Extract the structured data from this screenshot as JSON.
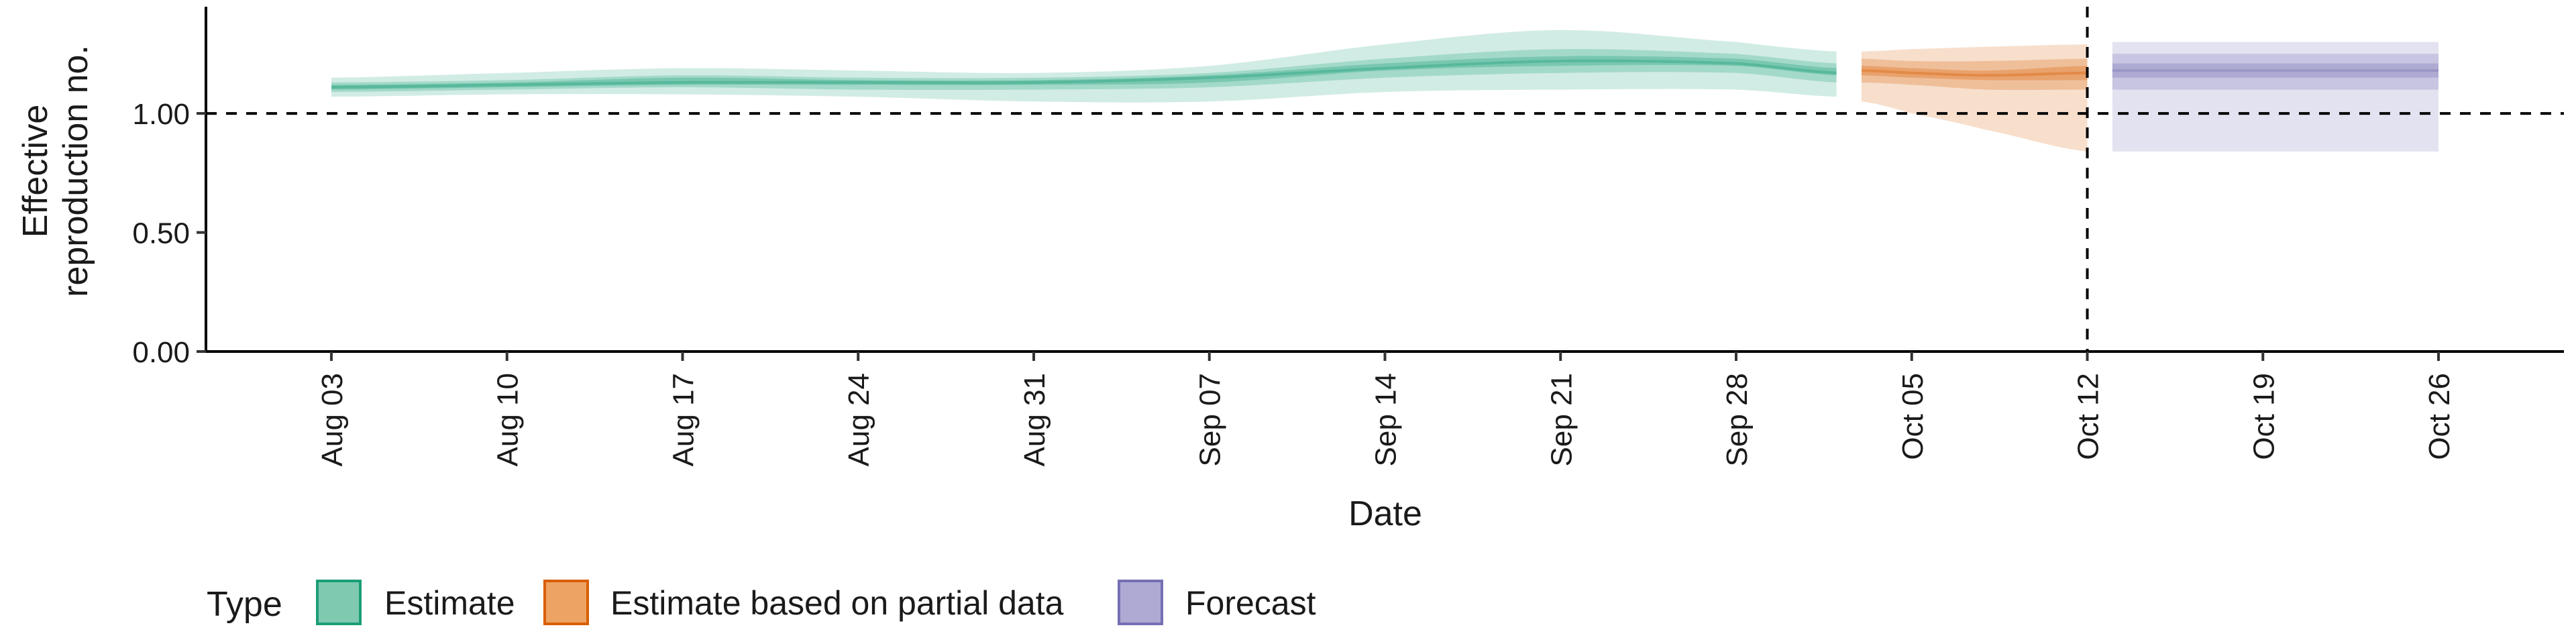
{
  "chart_data": {
    "type": "area",
    "xlabel": "Date",
    "ylabel": [
      "Effective",
      "reproduction no."
    ],
    "ylim": [
      0,
      1.42
    ],
    "yticks": [
      0.0,
      0.5,
      1.0
    ],
    "ytick_labels": [
      "0.00",
      "0.50",
      "1.00"
    ],
    "xlim": [
      "2020-07-29",
      "2020-10-31"
    ],
    "xticks": [
      "2020-08-03",
      "2020-08-10",
      "2020-08-17",
      "2020-08-24",
      "2020-08-31",
      "2020-09-07",
      "2020-09-14",
      "2020-09-21",
      "2020-09-28",
      "2020-10-05",
      "2020-10-12",
      "2020-10-19",
      "2020-10-26"
    ],
    "xtick_labels": [
      "Aug 03",
      "Aug 10",
      "Aug 17",
      "Aug 24",
      "Aug 31",
      "Sep 07",
      "Sep 14",
      "Sep 21",
      "Sep 28",
      "Oct 05",
      "Oct 12",
      "Oct 19",
      "Oct 26"
    ],
    "reference_line_y": 1.0,
    "reference_line_x": "2020-10-12",
    "grid": false,
    "legend_position": "bottom-left",
    "legend_title": "Type",
    "series": [
      {
        "name": "Estimate",
        "color": "#1b9e77",
        "points": [
          {
            "x": "2020-08-03",
            "median": 1.11,
            "lo20": 1.1,
            "hi20": 1.12,
            "lo50": 1.09,
            "hi50": 1.13,
            "lo90": 1.07,
            "hi90": 1.15
          },
          {
            "x": "2020-08-10",
            "median": 1.12,
            "lo20": 1.11,
            "hi20": 1.13,
            "lo50": 1.1,
            "hi50": 1.14,
            "lo90": 1.08,
            "hi90": 1.17
          },
          {
            "x": "2020-08-17",
            "median": 1.13,
            "lo20": 1.12,
            "hi20": 1.15,
            "lo50": 1.11,
            "hi50": 1.16,
            "lo90": 1.08,
            "hi90": 1.19
          },
          {
            "x": "2020-08-24",
            "median": 1.13,
            "lo20": 1.12,
            "hi20": 1.14,
            "lo50": 1.1,
            "hi50": 1.15,
            "lo90": 1.07,
            "hi90": 1.18
          },
          {
            "x": "2020-08-31",
            "median": 1.13,
            "lo20": 1.12,
            "hi20": 1.14,
            "lo50": 1.1,
            "hi50": 1.15,
            "lo90": 1.05,
            "hi90": 1.17
          },
          {
            "x": "2020-09-07",
            "median": 1.15,
            "lo20": 1.13,
            "hi20": 1.16,
            "lo50": 1.11,
            "hi50": 1.17,
            "lo90": 1.05,
            "hi90": 1.2
          },
          {
            "x": "2020-09-14",
            "median": 1.19,
            "lo20": 1.18,
            "hi20": 1.21,
            "lo50": 1.15,
            "hi50": 1.23,
            "lo90": 1.09,
            "hi90": 1.29
          },
          {
            "x": "2020-09-21",
            "median": 1.22,
            "lo20": 1.2,
            "hi20": 1.24,
            "lo50": 1.17,
            "hi50": 1.27,
            "lo90": 1.1,
            "hi90": 1.35
          },
          {
            "x": "2020-09-28",
            "median": 1.21,
            "lo20": 1.2,
            "hi20": 1.23,
            "lo50": 1.17,
            "hi50": 1.25,
            "lo90": 1.1,
            "hi90": 1.3
          },
          {
            "x": "2020-10-02",
            "median": 1.17,
            "lo20": 1.16,
            "hi20": 1.19,
            "lo50": 1.13,
            "hi50": 1.21,
            "lo90": 1.07,
            "hi90": 1.26
          }
        ]
      },
      {
        "name": "Estimate based on partial data",
        "color": "#d95f02",
        "points": [
          {
            "x": "2020-10-03",
            "median": 1.18,
            "lo20": 1.16,
            "hi20": 1.2,
            "lo50": 1.13,
            "hi50": 1.23,
            "lo90": 1.05,
            "hi90": 1.26
          },
          {
            "x": "2020-10-05",
            "median": 1.17,
            "lo20": 1.15,
            "hi20": 1.19,
            "lo50": 1.12,
            "hi50": 1.22,
            "lo90": 1.0,
            "hi90": 1.27
          },
          {
            "x": "2020-10-08",
            "median": 1.16,
            "lo20": 1.14,
            "hi20": 1.18,
            "lo50": 1.1,
            "hi50": 1.22,
            "lo90": 0.93,
            "hi90": 1.28
          },
          {
            "x": "2020-10-12",
            "median": 1.17,
            "lo20": 1.14,
            "hi20": 1.2,
            "lo50": 1.1,
            "hi50": 1.23,
            "lo90": 0.84,
            "hi90": 1.29
          }
        ]
      },
      {
        "name": "Forecast",
        "color": "#7570b3",
        "points": [
          {
            "x": "2020-10-13",
            "median": 1.18,
            "lo20": 1.15,
            "hi20": 1.21,
            "lo50": 1.1,
            "hi50": 1.25,
            "lo90": 0.84,
            "hi90": 1.3
          },
          {
            "x": "2020-10-26",
            "median": 1.18,
            "lo20": 1.15,
            "hi20": 1.21,
            "lo50": 1.1,
            "hi50": 1.25,
            "lo90": 0.84,
            "hi90": 1.3
          }
        ]
      }
    ]
  },
  "legend": {
    "title": "Type",
    "items": [
      {
        "label": "Estimate",
        "fill": "#7fc9b0",
        "stroke": "#1b9e77"
      },
      {
        "label": "Estimate based on partial data",
        "fill": "#eca363",
        "stroke": "#d95f02"
      },
      {
        "label": "Forecast",
        "fill": "#aeaad4",
        "stroke": "#7570b3"
      }
    ]
  }
}
